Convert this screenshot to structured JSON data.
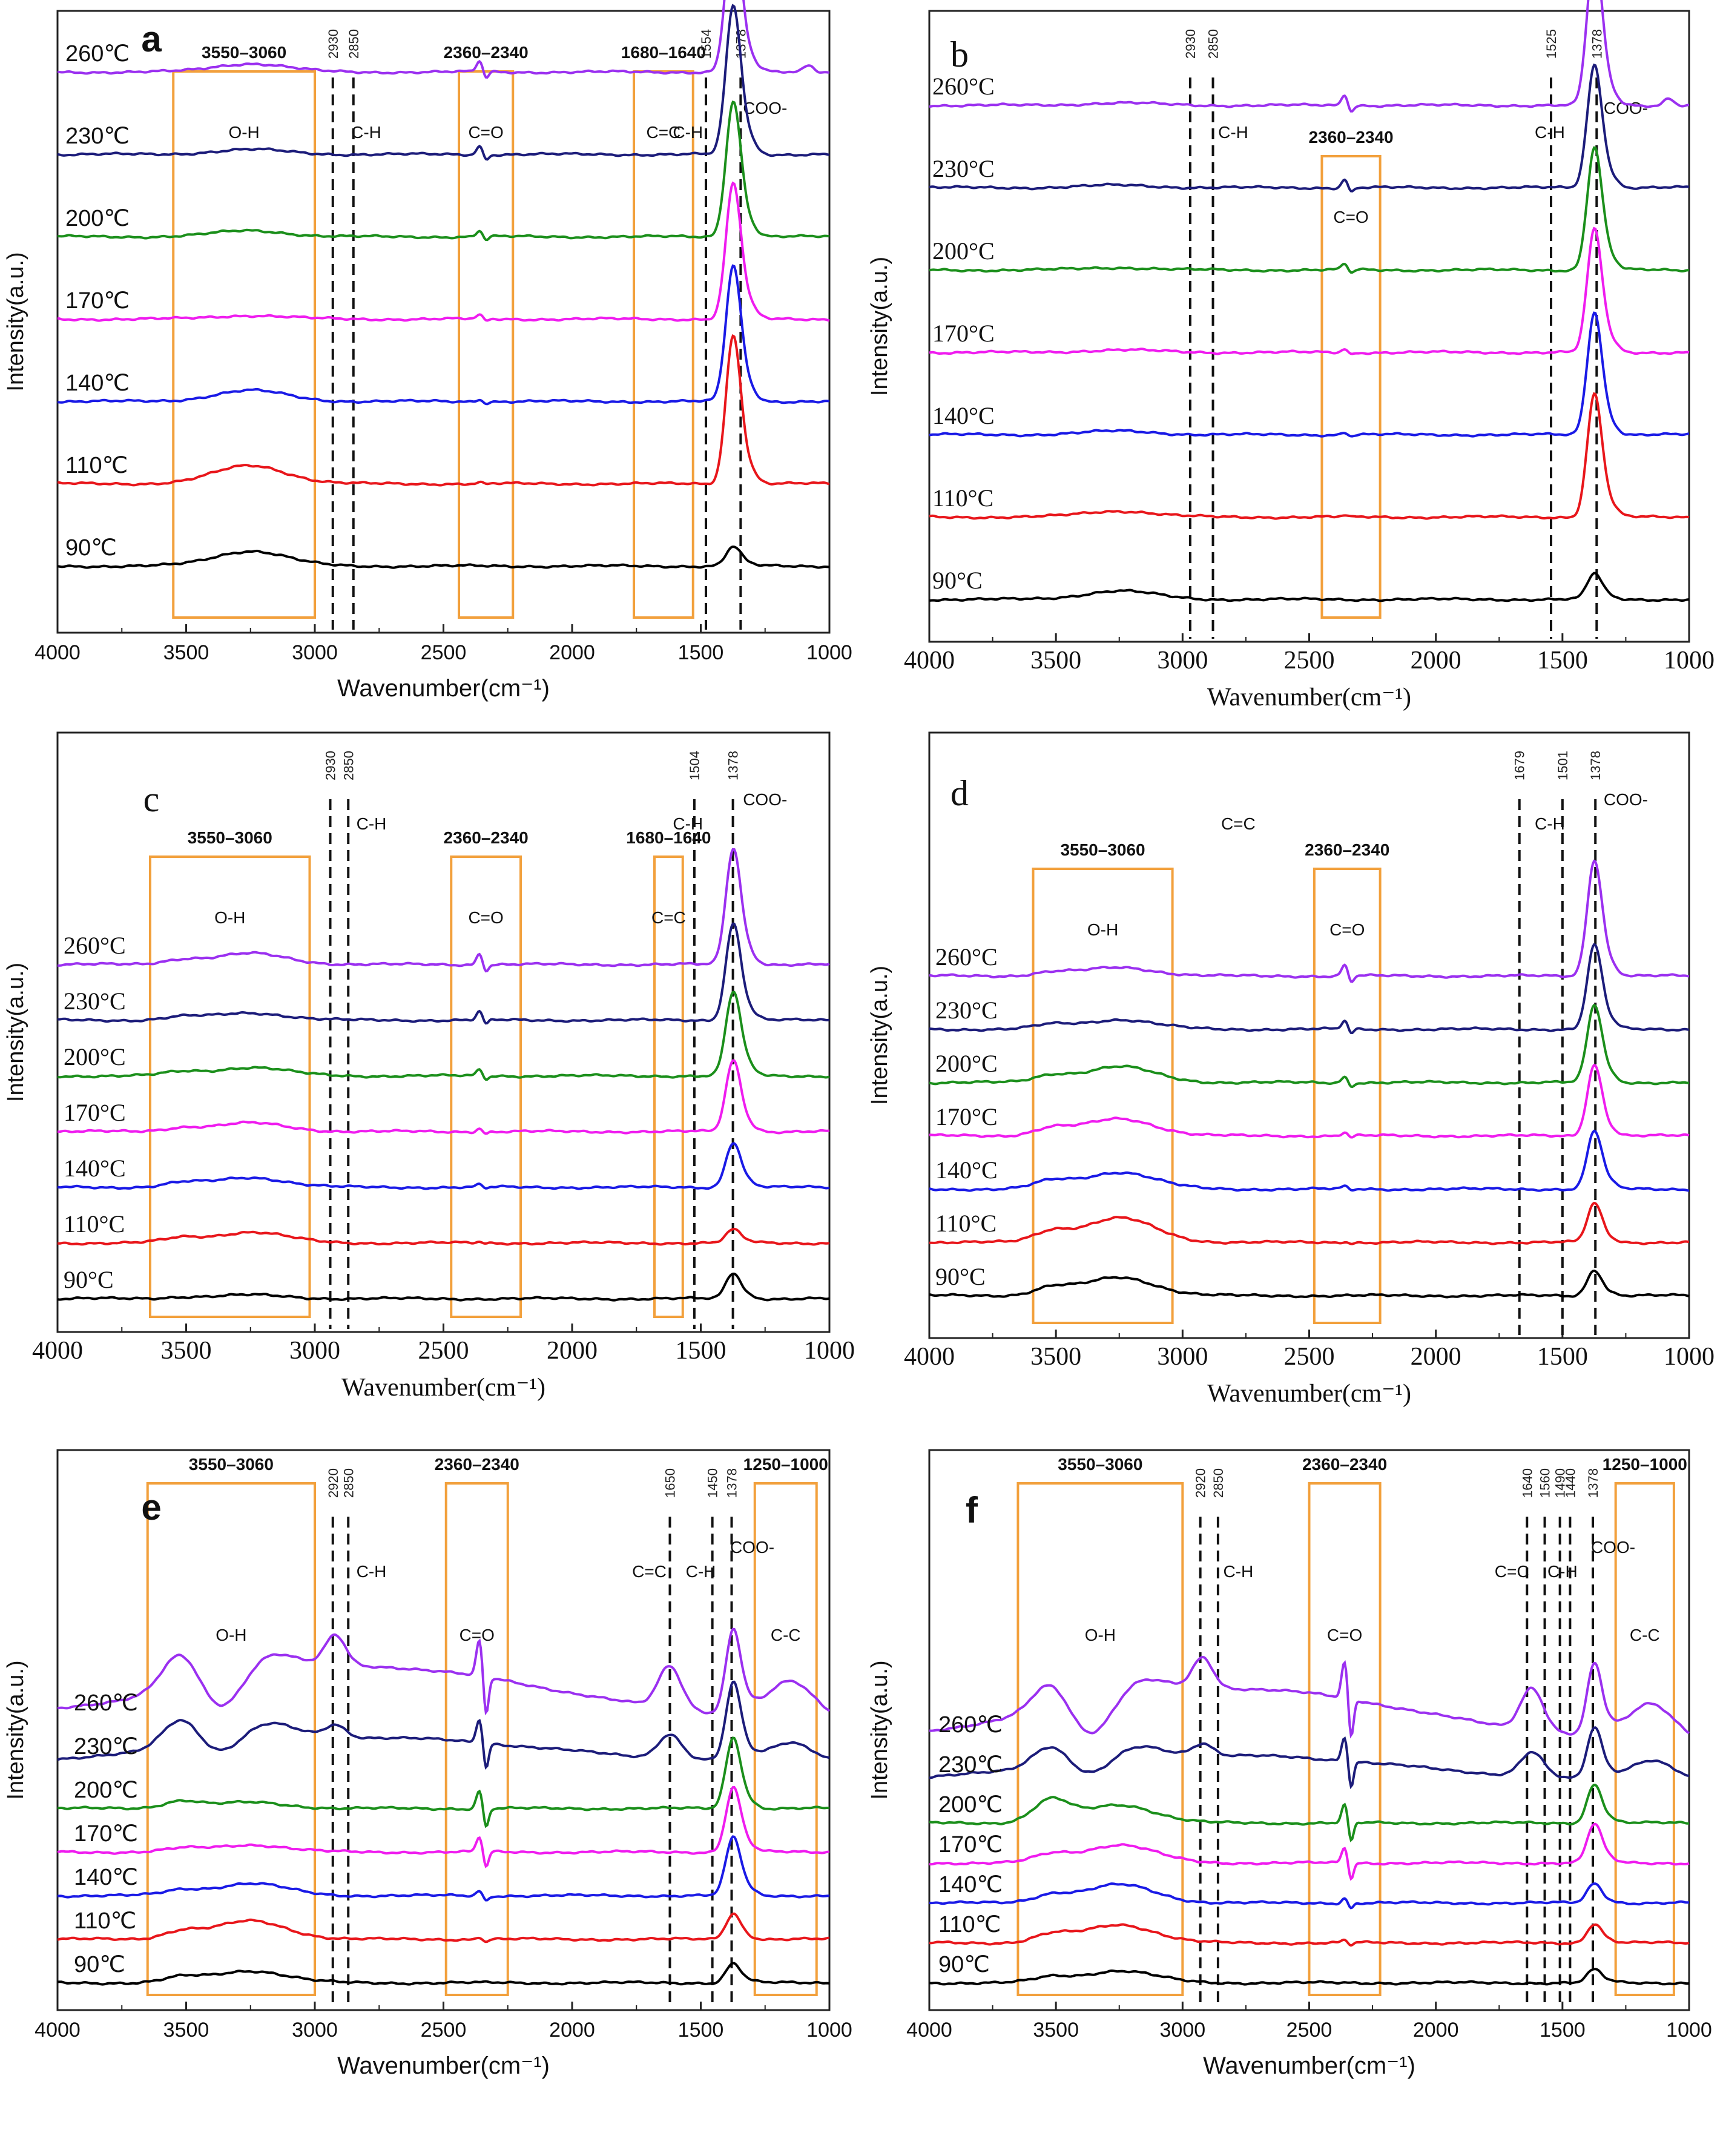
{
  "colors": {
    "90": "#000000",
    "110": "#e8161b",
    "140": "#1a1ae6",
    "170": "#ef1cef",
    "200": "#1b8f1b",
    "230": "#1c1c7a",
    "260": "#9b30f0",
    "box": "#f2a03c"
  },
  "chart_data": [
    {
      "panel": "a",
      "type": "line",
      "style": "sans",
      "unit": "℃",
      "xlabel": "Wavenumber(cm⁻¹)",
      "ylabel": "Intensity(a.u.)",
      "xlim": [
        4000,
        1000
      ],
      "xticks": [
        4000,
        3500,
        3000,
        2500,
        2000,
        1500,
        1000
      ],
      "series": [
        {
          "name": "90",
          "label": "90℃"
        },
        {
          "name": "110",
          "label": "110℃"
        },
        {
          "name": "140",
          "label": "140℃"
        },
        {
          "name": "170",
          "label": "170℃"
        },
        {
          "name": "200",
          "label": "200℃"
        },
        {
          "name": "230",
          "label": "230℃"
        },
        {
          "name": "260",
          "label": "260℃"
        }
      ],
      "ranges": [
        {
          "label": "3550–3060",
          "x1": 3550,
          "x2": 3000,
          "band": "O-H"
        },
        {
          "label": "2360–2340",
          "x1": 2440,
          "x2": 2230,
          "band": "C=O"
        },
        {
          "label": "1680–1640",
          "x1": 1760,
          "x2": 1530,
          "band": "C=C"
        }
      ],
      "peaks": [
        {
          "label": "2930",
          "x": 2930
        },
        {
          "label": "2850",
          "x": 2850
        },
        {
          "label": "1554",
          "x": 1480
        },
        {
          "label": "1378",
          "x": 1345
        }
      ],
      "annotations": [
        "C-H",
        "C-H",
        "COO-"
      ]
    },
    {
      "panel": "b",
      "type": "line",
      "style": "serif",
      "unit": "°C",
      "xlabel": "Wavenumber(cm⁻¹)",
      "ylabel": "Intensity(a.u.)",
      "xlim": [
        4000,
        1000
      ],
      "xticks": [
        4000,
        3500,
        3000,
        2500,
        2000,
        1500,
        1000
      ],
      "series": [
        {
          "name": "90",
          "label": "90°C"
        },
        {
          "name": "110",
          "label": "110°C"
        },
        {
          "name": "140",
          "label": "140°C"
        },
        {
          "name": "170",
          "label": "170°C"
        },
        {
          "name": "200",
          "label": "200°C"
        },
        {
          "name": "230",
          "label": "230°C"
        },
        {
          "name": "260",
          "label": "260°C"
        }
      ],
      "ranges": [
        {
          "label": "2360–2340",
          "x1": 2450,
          "x2": 2220,
          "band": "C=O"
        }
      ],
      "peaks": [
        {
          "label": "2930",
          "x": 2970
        },
        {
          "label": "2850",
          "x": 2880
        },
        {
          "label": "1525",
          "x": 1545
        },
        {
          "label": "1378",
          "x": 1365
        }
      ],
      "annotations": [
        "C-H",
        "C-H",
        "COO-"
      ]
    },
    {
      "panel": "c",
      "type": "line",
      "style": "serif",
      "unit": "°C",
      "xlabel": "Wavenumber(cm⁻¹)",
      "ylabel": "Intensity(a.u.)",
      "xlim": [
        4000,
        1000
      ],
      "xticks": [
        4000,
        3500,
        3000,
        2500,
        2000,
        1500,
        1000
      ],
      "series": [
        {
          "name": "90",
          "label": "90°C"
        },
        {
          "name": "110",
          "label": "110°C"
        },
        {
          "name": "140",
          "label": "140°C"
        },
        {
          "name": "170",
          "label": "170°C"
        },
        {
          "name": "200",
          "label": "200°C"
        },
        {
          "name": "230",
          "label": "230°C"
        },
        {
          "name": "260",
          "label": "260°C"
        }
      ],
      "ranges": [
        {
          "label": "3550–3060",
          "x1": 3640,
          "x2": 3020,
          "band": "O-H"
        },
        {
          "label": "2360–2340",
          "x1": 2470,
          "x2": 2200,
          "band": "C=O"
        },
        {
          "label": "1680–1640",
          "x1": 1680,
          "x2": 1570,
          "band": "C=C"
        }
      ],
      "peaks": [
        {
          "label": "2930",
          "x": 2940
        },
        {
          "label": "2850",
          "x": 2870
        },
        {
          "label": "1504",
          "x": 1525
        },
        {
          "label": "1378",
          "x": 1375
        }
      ],
      "annotations": [
        "C-H",
        "C-H",
        "COO-"
      ]
    },
    {
      "panel": "d",
      "type": "line",
      "style": "serif",
      "unit": "°C",
      "xlabel": "Wavenumber(cm⁻¹)",
      "ylabel": "Intensity(a.u.)",
      "xlim": [
        4000,
        1000
      ],
      "xticks": [
        4000,
        3500,
        3000,
        2500,
        2000,
        1500,
        1000
      ],
      "series": [
        {
          "name": "90",
          "label": "90°C"
        },
        {
          "name": "110",
          "label": "110°C"
        },
        {
          "name": "140",
          "label": "140°C"
        },
        {
          "name": "170",
          "label": "170°C"
        },
        {
          "name": "200",
          "label": "200°C"
        },
        {
          "name": "230",
          "label": "230°C"
        },
        {
          "name": "260",
          "label": "260°C"
        }
      ],
      "ranges": [
        {
          "label": "3550–3060",
          "x1": 3590,
          "x2": 3040,
          "band": "O-H"
        },
        {
          "label": "2360–2340",
          "x1": 2480,
          "x2": 2220,
          "band": "C=O"
        }
      ],
      "peaks": [
        {
          "label": "1679",
          "x": 1670
        },
        {
          "label": "1501",
          "x": 1500
        },
        {
          "label": "1378",
          "x": 1370
        }
      ],
      "annotations": [
        "C=C",
        "C-H",
        "COO-"
      ]
    },
    {
      "panel": "e",
      "type": "line",
      "style": "sans",
      "unit": "℃",
      "xlabel": "Wavenumber(cm⁻¹)",
      "ylabel": "Intensity(a.u.)",
      "xlim": [
        4000,
        1000
      ],
      "xticks": [
        4000,
        3500,
        3000,
        2500,
        2000,
        1500,
        1000
      ],
      "series": [
        {
          "name": "90",
          "label": "90℃"
        },
        {
          "name": "110",
          "label": "110℃"
        },
        {
          "name": "140",
          "label": "140℃"
        },
        {
          "name": "170",
          "label": "170℃"
        },
        {
          "name": "200",
          "label": "200℃"
        },
        {
          "name": "230",
          "label": "230℃"
        },
        {
          "name": "260",
          "label": "260℃"
        }
      ],
      "ranges": [
        {
          "label": "3550–3060",
          "x1": 3650,
          "x2": 3000,
          "band": "O-H"
        },
        {
          "label": "2360–2340",
          "x1": 2490,
          "x2": 2250,
          "band": "C=O"
        },
        {
          "label": "1250–1000",
          "x1": 1290,
          "x2": 1050,
          "band": "C-C"
        }
      ],
      "peaks": [
        {
          "label": "2920",
          "x": 2930
        },
        {
          "label": "2850",
          "x": 2870
        },
        {
          "label": "1650",
          "x": 1620
        },
        {
          "label": "1450",
          "x": 1455
        },
        {
          "label": "1378",
          "x": 1380
        }
      ],
      "annotations": [
        "C-H",
        "C=C",
        "C-H",
        "COO-"
      ]
    },
    {
      "panel": "f",
      "type": "line",
      "style": "sans",
      "unit": "℃",
      "xlabel": "Wavenumber(cm⁻¹)",
      "ylabel": "Intensity(a.u.)",
      "xlim": [
        4000,
        1000
      ],
      "xticks": [
        4000,
        3500,
        3000,
        2500,
        2000,
        1500,
        1000
      ],
      "series": [
        {
          "name": "90",
          "label": "90℃"
        },
        {
          "name": "110",
          "label": "110℃"
        },
        {
          "name": "140",
          "label": "140℃"
        },
        {
          "name": "170",
          "label": "170℃"
        },
        {
          "name": "200",
          "label": "200℃"
        },
        {
          "name": "230",
          "label": "230℃"
        },
        {
          "name": "260",
          "label": "260℃"
        }
      ],
      "ranges": [
        {
          "label": "3550–3060",
          "x1": 3650,
          "x2": 3000,
          "band": "O-H"
        },
        {
          "label": "2360–2340",
          "x1": 2500,
          "x2": 2220,
          "band": "C=O"
        },
        {
          "label": "1250–1000",
          "x1": 1290,
          "x2": 1060,
          "band": "C-C"
        }
      ],
      "peaks": [
        {
          "label": "2920",
          "x": 2930
        },
        {
          "label": "2850",
          "x": 2860
        },
        {
          "label": "1640",
          "x": 1640
        },
        {
          "label": "1560",
          "x": 1570
        },
        {
          "label": "1490",
          "x": 1510
        },
        {
          "label": "1440",
          "x": 1470
        },
        {
          "label": "1378",
          "x": 1380
        }
      ],
      "annotations": [
        "C-H",
        "C=C",
        "C-H",
        "COO-"
      ]
    }
  ]
}
